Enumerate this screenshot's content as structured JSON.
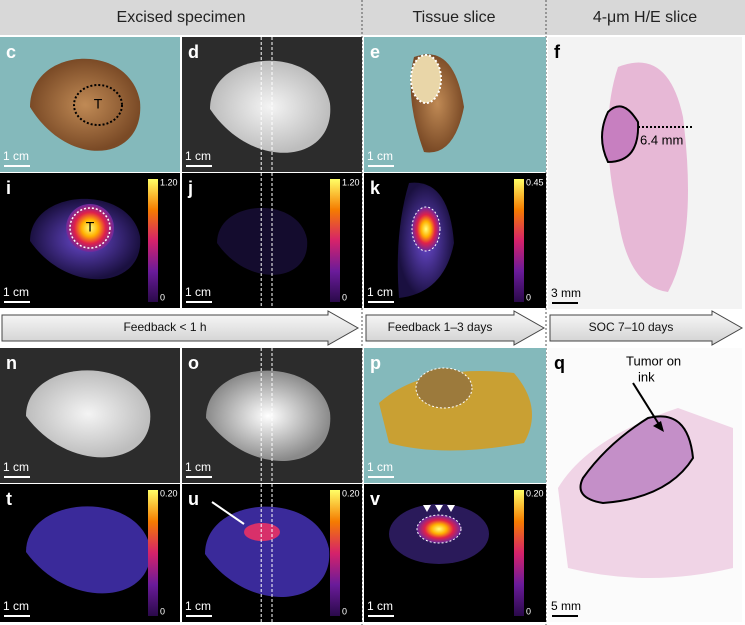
{
  "headers": [
    "Excised specimen",
    "Tissue slice",
    "4-μm H/E slice"
  ],
  "panels": [
    {
      "letter": "c",
      "scale_bar": "1 cm",
      "marker": "T"
    },
    {
      "letter": "d",
      "scale_bar": "1 cm"
    },
    {
      "letter": "e",
      "scale_bar": "1 cm"
    },
    {
      "letter": "f",
      "scale_bar": "3 mm",
      "annotation": "6.4 mm"
    },
    {
      "letter": "i",
      "scale_bar": "1 cm",
      "marker": "T",
      "colorbar": {
        "max": "1.20",
        "min": "0"
      }
    },
    {
      "letter": "j",
      "scale_bar": "1 cm",
      "colorbar": {
        "max": "1.20",
        "min": "0"
      }
    },
    {
      "letter": "k",
      "scale_bar": "1 cm",
      "colorbar": {
        "max": "0.45",
        "min": "0"
      }
    },
    {
      "letter": "n",
      "scale_bar": "1 cm"
    },
    {
      "letter": "o",
      "scale_bar": "1 cm"
    },
    {
      "letter": "p",
      "scale_bar": "1 cm"
    },
    {
      "letter": "q",
      "scale_bar": "5 mm",
      "annotation": [
        "Tumor on",
        "ink"
      ]
    },
    {
      "letter": "t",
      "scale_bar": "1 cm",
      "colorbar": {
        "max": "0.20",
        "min": "0"
      }
    },
    {
      "letter": "u",
      "scale_bar": "1 cm",
      "colorbar": {
        "max": "0.20",
        "min": "0"
      }
    },
    {
      "letter": "v",
      "scale_bar": "1 cm",
      "colorbar": {
        "max": "0.20",
        "min": "0"
      }
    }
  ],
  "arrows": [
    "Feedback < 1 h",
    "Feedback 1–3 days",
    "SOC 7–10 days"
  ]
}
